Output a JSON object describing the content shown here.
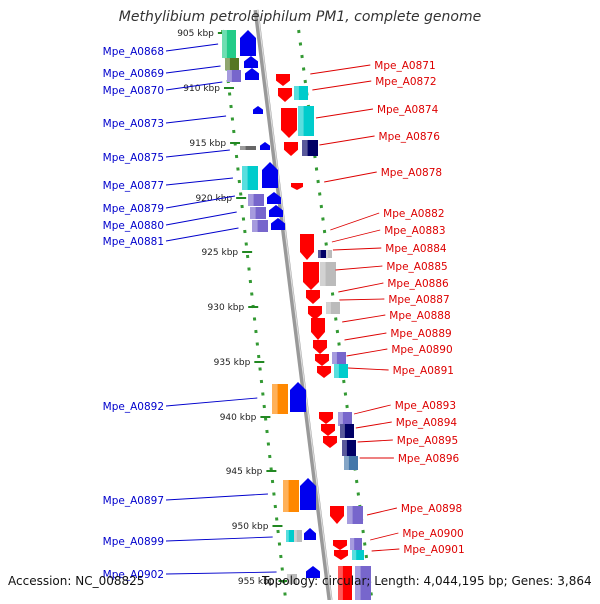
{
  "title": "Methylibium petroleiphilum PM1, complete genome",
  "accession_label": "Accession: NC_008825",
  "topology_label": "Topology: circular; Length: 4,044,195 bp; Genes: 3,864",
  "colors": {
    "left_label": "#0000cc",
    "right_label": "#dd0000",
    "strand_dots": "#339933",
    "axis": "#999999",
    "red": "#ff0000",
    "blue": "#0000ee",
    "cyan": "#00cccc",
    "purple": "#7766cc",
    "orange": "#ff8800",
    "navy": "#000066",
    "gray": "#bbbbbb",
    "steel": "#4477aa",
    "olive": "#557722",
    "green": "#22cc88"
  },
  "ticks": [
    "905 kbp",
    "910 kbp",
    "915 kbp",
    "920 kbp",
    "925 kbp",
    "930 kbp",
    "935 kbp",
    "940 kbp",
    "945 kbp",
    "950 kbp",
    "955 kbp"
  ],
  "left_genes": [
    "Mpe_A0868",
    "Mpe_A0869",
    "Mpe_A0870",
    "Mpe_A0873",
    "Mpe_A0875",
    "Mpe_A0877",
    "Mpe_A0879",
    "Mpe_A0880",
    "Mpe_A0881",
    "Mpe_A0892",
    "Mpe_A0897",
    "Mpe_A0899",
    "Mpe_A0902"
  ],
  "right_genes": [
    "Mpe_A0871",
    "Mpe_A0872",
    "Mpe_A0874",
    "Mpe_A0876",
    "Mpe_A0878",
    "Mpe_A0882",
    "Mpe_A0883",
    "Mpe_A0884",
    "Mpe_A0885",
    "Mpe_A0886",
    "Mpe_A0887",
    "Mpe_A0888",
    "Mpe_A0889",
    "Mpe_A0890",
    "Mpe_A0891",
    "Mpe_A0893",
    "Mpe_A0894",
    "Mpe_A0895",
    "Mpe_A0896",
    "Mpe_A0898",
    "Mpe_A0900",
    "Mpe_A0901"
  ]
}
